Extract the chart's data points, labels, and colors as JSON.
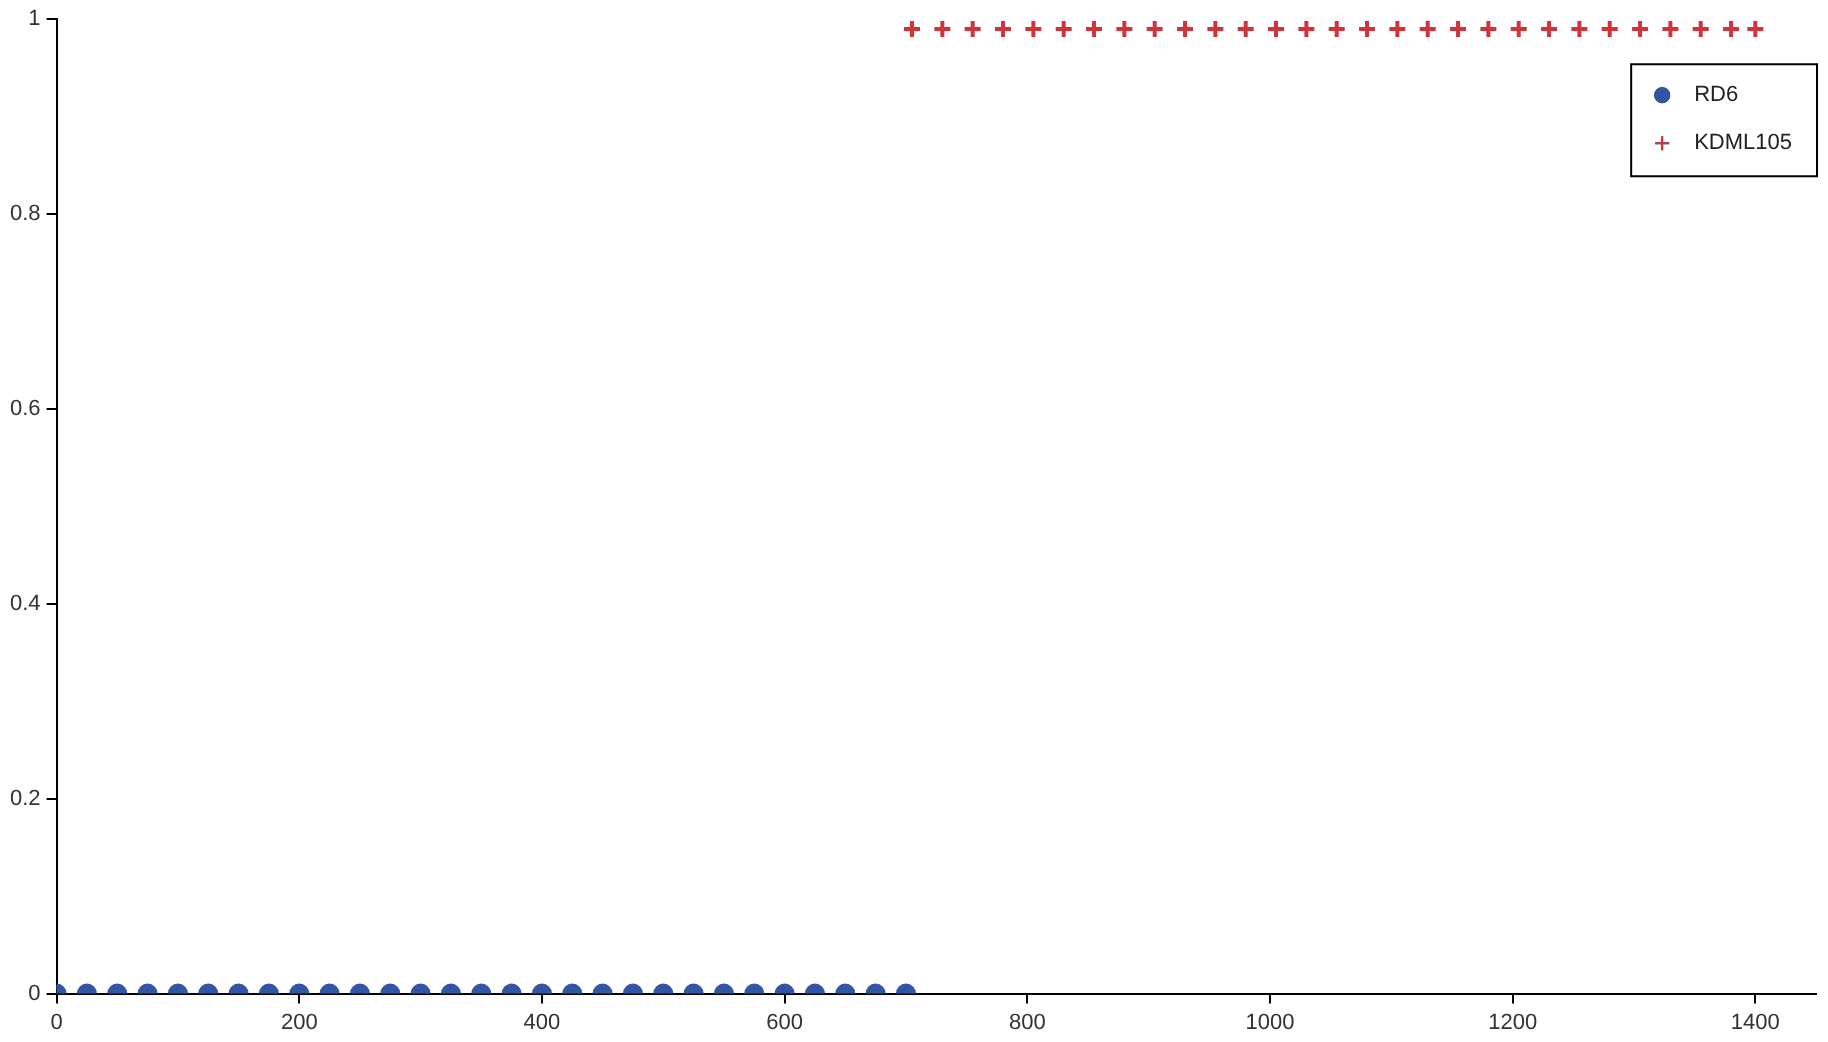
{
  "chart_data": {
    "type": "scatter",
    "xlim": [
      0,
      1450
    ],
    "xticks": [
      0,
      200,
      400,
      600,
      800,
      1000,
      1200,
      1400
    ],
    "ylim": [
      0,
      1
    ],
    "yticks": [
      0,
      0.2,
      0.4,
      0.6,
      0.8,
      1
    ],
    "grid": false,
    "legend": "top right",
    "series": [
      {
        "name": "RD6",
        "color": "#3355a5",
        "marker": "circle",
        "x": [
          0,
          25,
          50,
          75,
          100,
          125,
          150,
          175,
          200,
          225,
          250,
          275,
          300,
          325,
          350,
          375,
          400,
          425,
          450,
          475,
          500,
          525,
          550,
          575,
          600,
          625,
          650,
          675,
          700
        ],
        "values": [
          0,
          0,
          0,
          0,
          0,
          0,
          0,
          0,
          0,
          0,
          0,
          0,
          0,
          0,
          0,
          0,
          0,
          0,
          0,
          0,
          0,
          0,
          0,
          0,
          0,
          0,
          0,
          0,
          0
        ]
      },
      {
        "name": "KDML105",
        "color": "#d0343a",
        "marker": "cross",
        "x": [
          705,
          730,
          755,
          780,
          805,
          830,
          855,
          880,
          905,
          930,
          955,
          980,
          1005,
          1030,
          1055,
          1080,
          1105,
          1130,
          1155,
          1180,
          1205,
          1230,
          1255,
          1280,
          1305,
          1330,
          1355,
          1380,
          1400
        ],
        "values": [
          0.99,
          0.99,
          0.99,
          0.99,
          0.99,
          0.99,
          0.99,
          0.99,
          0.99,
          0.99,
          0.99,
          0.99,
          0.99,
          0.99,
          0.99,
          0.99,
          0.99,
          0.99,
          0.99,
          0.99,
          0.99,
          0.99,
          0.99,
          0.99,
          0.99,
          0.99,
          0.99,
          0.99,
          0.99
        ]
      }
    ]
  }
}
